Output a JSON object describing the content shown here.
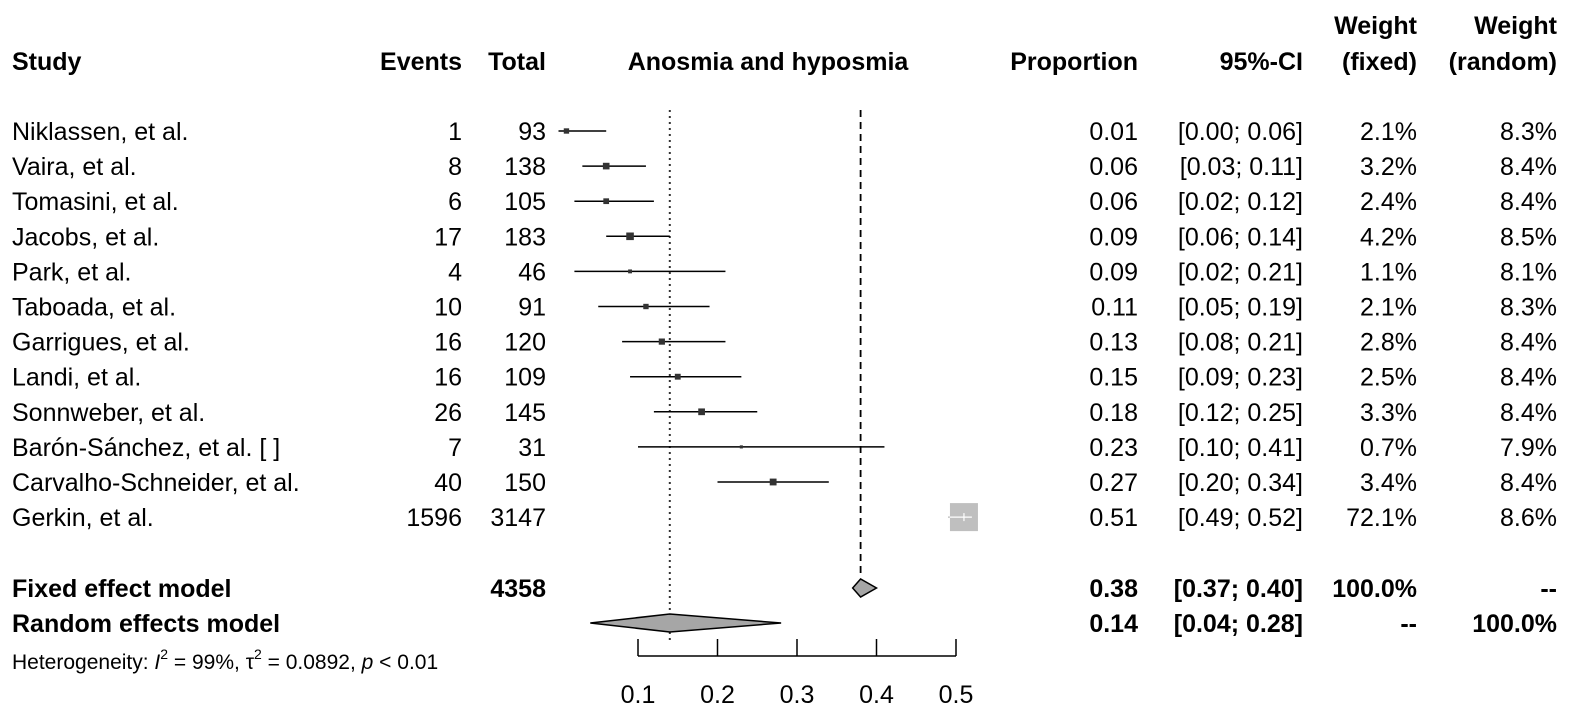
{
  "headers": {
    "study": "Study",
    "events": "Events",
    "total": "Total",
    "plot_title": "Anosmia and hyposmia",
    "proportion": "Proportion",
    "ci": "95%-CI",
    "weight_fixed_1": "Weight",
    "weight_fixed_2": "(fixed)",
    "weight_random_1": "Weight",
    "weight_random_2": "(random)"
  },
  "summary": {
    "fixed": {
      "label": "Fixed effect model",
      "total": "4358",
      "proportion": "0.38",
      "ci": "[0.37; 0.40]",
      "weight_fixed": "100.0%",
      "weight_random": "--"
    },
    "random": {
      "label": "Random effects model",
      "proportion": "0.14",
      "ci": "[0.04; 0.28]",
      "weight_fixed": "--",
      "weight_random": "100.0%"
    }
  },
  "heterogeneity": {
    "prefix": "Heterogeneity: ",
    "i_symbol": "I",
    "i_sup": "2",
    "i_value": " = 99%, ",
    "tau_symbol": "τ",
    "tau_sup": "2",
    "tau_value": " = 0.0892, ",
    "p_symbol": "p",
    "p_value": " < 0.01"
  },
  "colors": {
    "ink": "#000000",
    "marker": "#333333",
    "diamond_fill": "#a6a6a6",
    "big_square": "#bfbfbf"
  },
  "chart_data": {
    "type": "forest",
    "x_range": [
      0.1,
      0.5
    ],
    "x_ticks": [
      0.1,
      0.2,
      0.3,
      0.4,
      0.5
    ],
    "x_tick_labels": [
      "0.1",
      "0.2",
      "0.3",
      "0.4",
      "0.5"
    ],
    "fixed_line": 0.38,
    "random_line": 0.14,
    "fixed_estimate": {
      "est": 0.38,
      "lo": 0.37,
      "hi": 0.4
    },
    "random_estimate": {
      "est": 0.14,
      "lo": 0.04,
      "hi": 0.28
    },
    "studies": [
      {
        "study": "Niklassen, et al.",
        "events": "1",
        "total": "93",
        "proportion": "0.01",
        "ci": "[0.00; 0.06]",
        "weight_fixed": "2.1%",
        "weight_random": "8.3%",
        "est": 0.01,
        "lo": 0.0,
        "hi": 0.06
      },
      {
        "study": "Vaira, et al.",
        "events": "8",
        "total": "138",
        "proportion": "0.06",
        "ci": "[0.03; 0.11]",
        "weight_fixed": "3.2%",
        "weight_random": "8.4%",
        "est": 0.06,
        "lo": 0.03,
        "hi": 0.11
      },
      {
        "study": "Tomasini, et al.",
        "events": "6",
        "total": "105",
        "proportion": "0.06",
        "ci": "[0.02; 0.12]",
        "weight_fixed": "2.4%",
        "weight_random": "8.4%",
        "est": 0.06,
        "lo": 0.02,
        "hi": 0.12
      },
      {
        "study": "Jacobs, et al.",
        "events": "17",
        "total": "183",
        "proportion": "0.09",
        "ci": "[0.06; 0.14]",
        "weight_fixed": "4.2%",
        "weight_random": "8.5%",
        "est": 0.09,
        "lo": 0.06,
        "hi": 0.14
      },
      {
        "study": "Park, et al.",
        "events": "4",
        "total": "46",
        "proportion": "0.09",
        "ci": "[0.02; 0.21]",
        "weight_fixed": "1.1%",
        "weight_random": "8.1%",
        "est": 0.09,
        "lo": 0.02,
        "hi": 0.21
      },
      {
        "study": "Taboada, et al.",
        "events": "10",
        "total": "91",
        "proportion": "0.11",
        "ci": "[0.05; 0.19]",
        "weight_fixed": "2.1%",
        "weight_random": "8.3%",
        "est": 0.11,
        "lo": 0.05,
        "hi": 0.19
      },
      {
        "study": "Garrigues, et al.",
        "events": "16",
        "total": "120",
        "proportion": "0.13",
        "ci": "[0.08; 0.21]",
        "weight_fixed": "2.8%",
        "weight_random": "8.4%",
        "est": 0.13,
        "lo": 0.08,
        "hi": 0.21
      },
      {
        "study": "Landi, et al.",
        "events": "16",
        "total": "109",
        "proportion": "0.15",
        "ci": "[0.09; 0.23]",
        "weight_fixed": "2.5%",
        "weight_random": "8.4%",
        "est": 0.15,
        "lo": 0.09,
        "hi": 0.23
      },
      {
        "study": "Sonnweber, et al.",
        "events": "26",
        "total": "145",
        "proportion": "0.18",
        "ci": "[0.12; 0.25]",
        "weight_fixed": "3.3%",
        "weight_random": "8.4%",
        "est": 0.18,
        "lo": 0.12,
        "hi": 0.25
      },
      {
        "study": "Barón-Sánchez, et al. [ ]",
        "events": "7",
        "total": "31",
        "proportion": "0.23",
        "ci": "[0.10; 0.41]",
        "weight_fixed": "0.7%",
        "weight_random": "7.9%",
        "est": 0.23,
        "lo": 0.1,
        "hi": 0.41
      },
      {
        "study": "Carvalho-Schneider, et al.",
        "events": "40",
        "total": "150",
        "proportion": "0.27",
        "ci": "[0.20; 0.34]",
        "weight_fixed": "3.4%",
        "weight_random": "8.4%",
        "est": 0.27,
        "lo": 0.2,
        "hi": 0.34
      },
      {
        "study": "Gerkin, et al.",
        "events": "1596",
        "total": "3147",
        "proportion": "0.51",
        "ci": "[0.49; 0.52]",
        "weight_fixed": "72.1%",
        "weight_random": "8.6%",
        "est": 0.51,
        "lo": 0.49,
        "hi": 0.52
      }
    ]
  }
}
